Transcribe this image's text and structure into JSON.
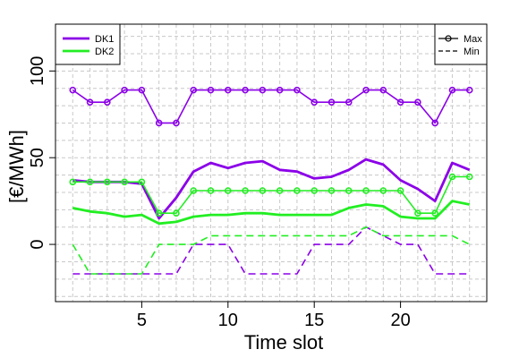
{
  "chart_data": {
    "type": "line",
    "title": "",
    "xlabel": "Time slot",
    "ylabel": "[€/MWh]",
    "xlim": [
      0,
      25
    ],
    "ylim": [
      -33,
      127
    ],
    "grid": true,
    "x_ticks": [
      5,
      10,
      15,
      20
    ],
    "y_ticks": [
      0,
      50,
      100
    ],
    "x": [
      1,
      2,
      3,
      4,
      5,
      6,
      7,
      8,
      9,
      10,
      11,
      12,
      13,
      14,
      15,
      16,
      17,
      18,
      19,
      20,
      21,
      22,
      23,
      24
    ],
    "colors": {
      "DK1": "#8B00E8",
      "DK2": "#22EE22"
    },
    "series": [
      {
        "name": "DK1",
        "kind": "max",
        "color_key": "DK1",
        "markers": true,
        "values": [
          89,
          82,
          82,
          89,
          89,
          70,
          70,
          89,
          89,
          89,
          89,
          89,
          89,
          89,
          82,
          82,
          82,
          89,
          89,
          82,
          82,
          70,
          89,
          89
        ]
      },
      {
        "name": "DK1",
        "kind": "mean",
        "color_key": "DK1",
        "markers": false,
        "values": [
          37,
          36,
          36,
          36,
          35,
          15,
          27,
          42,
          47,
          44,
          47,
          48,
          43,
          42,
          38,
          39,
          43,
          49,
          46,
          37,
          32,
          25,
          47,
          43
        ]
      },
      {
        "name": "DK1",
        "kind": "min",
        "color_key": "DK1",
        "markers": false,
        "values": [
          -17,
          -17,
          -17,
          -17,
          -17,
          -17,
          -17,
          0,
          0,
          0,
          -17,
          -17,
          -17,
          -17,
          0,
          0,
          0,
          10,
          5,
          0,
          0,
          -17,
          -17,
          -17
        ]
      },
      {
        "name": "DK2",
        "kind": "max",
        "color_key": "DK2",
        "markers": true,
        "values": [
          36,
          36,
          36,
          36,
          36,
          18,
          18,
          31,
          31,
          31,
          31,
          31,
          31,
          31,
          31,
          31,
          31,
          31,
          31,
          31,
          18,
          18,
          39,
          39
        ]
      },
      {
        "name": "DK2",
        "kind": "mean",
        "color_key": "DK2",
        "markers": false,
        "values": [
          21,
          19,
          18,
          16,
          17,
          12,
          13,
          16,
          17,
          17,
          18,
          18,
          17,
          17,
          17,
          17,
          21,
          23,
          22,
          16,
          15,
          15,
          25,
          23
        ]
      },
      {
        "name": "DK2",
        "kind": "min",
        "color_key": "DK2",
        "markers": false,
        "values": [
          0,
          -17,
          -17,
          -17,
          -17,
          0,
          0,
          0,
          5,
          5,
          5,
          5,
          5,
          5,
          5,
          5,
          5,
          10,
          5,
          5,
          5,
          5,
          5,
          0
        ]
      }
    ],
    "legend_color": {
      "placement": "top-left",
      "entries": [
        "DK1",
        "DK2"
      ]
    },
    "legend_style": {
      "placement": "top-right",
      "entries": [
        "Max",
        "Min"
      ]
    }
  }
}
